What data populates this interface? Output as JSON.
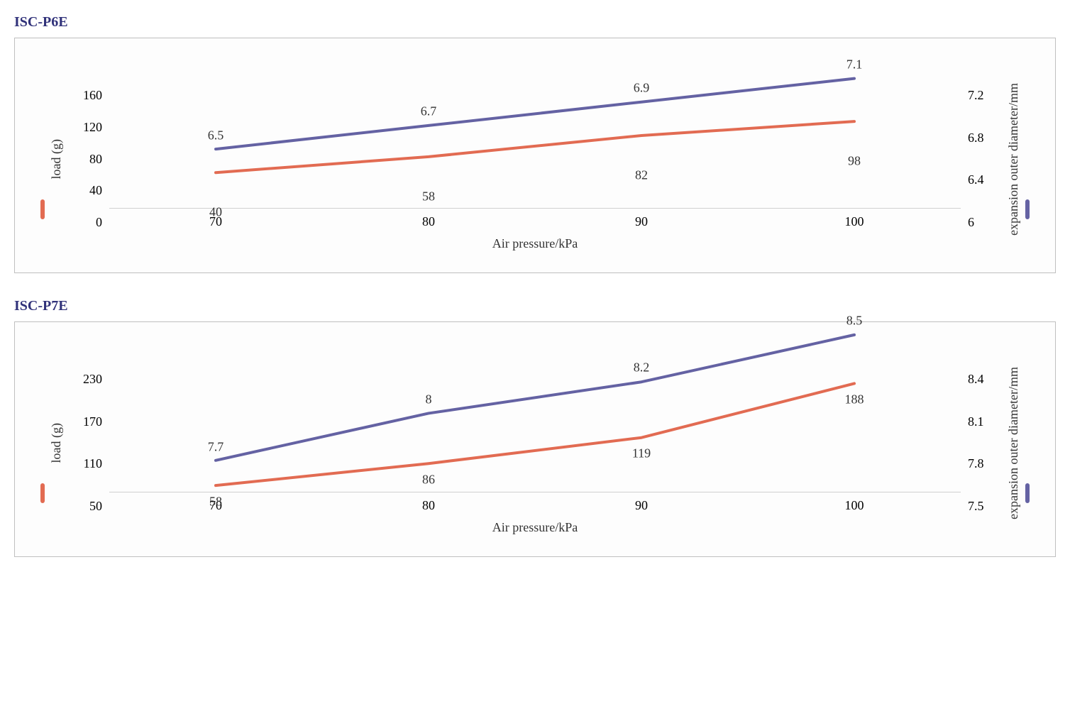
{
  "title_color": "#31327a",
  "load_color": "#e26b52",
  "diameter_color": "#6462a3",
  "text_color": "#333333",
  "border_color": "#bfbfbf",
  "line_width": 4,
  "label_fontsize": 18,
  "title_fontsize": 20,
  "x_label": "Air pressure/kPa",
  "y_left_label": "load (g)",
  "y_right_label": "expansion outer diameter/mm",
  "charts": [
    {
      "title": "ISC-P6E",
      "x_values": [
        70,
        80,
        90,
        100
      ],
      "load_values": [
        40,
        58,
        82,
        98
      ],
      "diameter_values": [
        6.5,
        6.7,
        6.9,
        7.1
      ],
      "y_left_ticks": [
        160,
        120,
        80,
        40,
        0
      ],
      "y_left_min": 0,
      "y_left_max": 160,
      "y_right_ticks": [
        7.2,
        6.8,
        6.4,
        6.0
      ],
      "y_right_min": 6.0,
      "y_right_max": 7.2,
      "load_label_offset_y": 55,
      "diam_label_offset_y": -20
    },
    {
      "title": "ISC-P7E",
      "x_values": [
        70,
        80,
        90,
        100
      ],
      "load_values": [
        58,
        86,
        119,
        188
      ],
      "diameter_values": [
        7.7,
        8.0,
        8.2,
        8.5
      ],
      "y_left_ticks": [
        230,
        170,
        110,
        50
      ],
      "y_left_min": 50,
      "y_left_max": 230,
      "y_right_ticks": [
        8.4,
        8.1,
        7.8,
        7.5
      ],
      "y_right_min": 7.5,
      "y_right_max": 8.4,
      "load_label_offset_y": 22,
      "diam_label_offset_y": -20
    }
  ]
}
